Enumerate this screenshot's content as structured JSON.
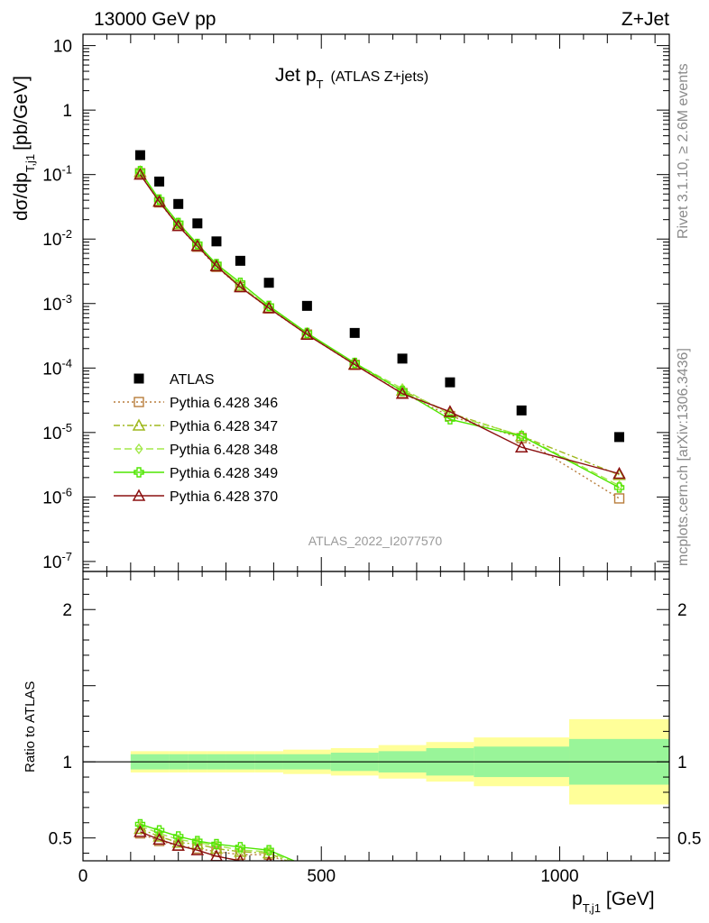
{
  "header": {
    "energy_label": "13000 GeV pp",
    "process_label": "Z+Jet"
  },
  "plot_title": {
    "main": "Jet p",
    "sub": "T",
    "note": "(ATLAS Z+jets)"
  },
  "analysis_id": "ATLAS_2022_I2077570",
  "side_texts": {
    "rivet": "Rivet 3.1.10, ≥ 2.6M events",
    "mcplots": "mcplots.cern.ch [arXiv:1306.3436]"
  },
  "ylabel": {
    "main": "dσ/dp",
    "sub": "T,j1",
    "unit": "[pb/GeV]"
  },
  "xlabel": {
    "main": "p",
    "sub": "T,j1",
    "unit": "[GeV]"
  },
  "ratio_ylabel": "Ratio to ATLAS",
  "main_ticks": [
    {
      "v": 10,
      "m": "10",
      "e": ""
    },
    {
      "v": 1,
      "m": "1",
      "e": ""
    },
    {
      "v": 0.1,
      "m": "10",
      "e": "-1"
    },
    {
      "v": 0.01,
      "m": "10",
      "e": "-2"
    },
    {
      "v": 0.001,
      "m": "10",
      "e": "-3"
    },
    {
      "v": 0.0001,
      "m": "10",
      "e": "-4"
    },
    {
      "v": 1e-05,
      "m": "10",
      "e": "-5"
    },
    {
      "v": 1e-06,
      "m": "10",
      "e": "-6"
    },
    {
      "v": 1e-07,
      "m": "10",
      "e": "-7"
    }
  ],
  "ratio_ticks": [
    {
      "v": 2,
      "label": "2"
    },
    {
      "v": 1,
      "label": "1"
    },
    {
      "v": 0.5,
      "label": "0.5"
    }
  ],
  "x_ticks": [
    {
      "v": 0,
      "label": "0"
    },
    {
      "v": 500,
      "label": "500"
    },
    {
      "v": 1000,
      "label": "1000"
    }
  ],
  "colors": {
    "data": "#000000",
    "band_inner": "#99f599",
    "band_outer": "#ffff99",
    "p346": "#b87d3b",
    "p347": "#9fb81e",
    "p348": "#a3e84a",
    "p349": "#4fe600",
    "p370": "#8b1010"
  },
  "chart_data": {
    "type": "scatter",
    "xlim": [
      0,
      1230
    ],
    "ylim": [
      7e-08,
      15
    ],
    "ylog": true,
    "ratio_ylim": [
      0.35,
      2.25
    ],
    "bins": [
      [
        100,
        140
      ],
      [
        140,
        180
      ],
      [
        180,
        220
      ],
      [
        220,
        260
      ],
      [
        260,
        300
      ],
      [
        300,
        360
      ],
      [
        360,
        420
      ],
      [
        420,
        520
      ],
      [
        520,
        620
      ],
      [
        620,
        720
      ],
      [
        720,
        820
      ],
      [
        820,
        1020
      ],
      [
        1020,
        1230
      ]
    ],
    "x": [
      120,
      160,
      200,
      240,
      280,
      330,
      390,
      470,
      570,
      670,
      770,
      920,
      1125
    ],
    "data": {
      "name": "ATLAS",
      "values": [
        0.2,
        0.078,
        0.035,
        0.0175,
        0.0092,
        0.0046,
        0.0021,
        0.00092,
        0.00035,
        0.00014,
        6e-05,
        2.2e-05,
        8.5e-06
      ],
      "band_inner": [
        0.05,
        0.05,
        0.05,
        0.05,
        0.05,
        0.05,
        0.05,
        0.05,
        0.06,
        0.07,
        0.09,
        0.1,
        0.15
      ],
      "band_outer": [
        0.07,
        0.07,
        0.07,
        0.07,
        0.07,
        0.07,
        0.07,
        0.08,
        0.09,
        0.11,
        0.13,
        0.16,
        0.28
      ]
    },
    "series": [
      {
        "key": "p346",
        "name": "Pythia 6.428 346",
        "marker": "square",
        "dash": "2,3",
        "values": [
          0.105,
          0.037,
          0.016,
          0.0076,
          0.0037,
          0.0018,
          0.00084,
          0.00033,
          0.000112,
          4.1e-05,
          1.8e-05,
          8.2e-06,
          9.5e-07
        ],
        "ratio": [
          0.53,
          0.48,
          0.45,
          0.43,
          0.41,
          0.39,
          0.39
        ]
      },
      {
        "key": "p347",
        "name": "Pythia 6.428 347",
        "marker": "triangle",
        "dash": "7,3,2,3",
        "values": [
          0.11,
          0.039,
          0.017,
          0.008,
          0.0039,
          0.0019,
          0.00087,
          0.00034,
          0.000115,
          4.5e-05,
          2e-05,
          8.8e-06,
          2.2e-06
        ],
        "ratio": [
          0.56,
          0.51,
          0.47,
          0.46,
          0.43,
          0.41,
          0.4
        ]
      },
      {
        "key": "p348",
        "name": "Pythia 6.428 348",
        "marker": "diamond",
        "dash": "8,4",
        "values": [
          0.112,
          0.04,
          0.0175,
          0.0082,
          0.004,
          0.0019,
          0.00088,
          0.00034,
          0.000118,
          4.8e-05,
          1.9e-05,
          9e-06,
          1.5e-06
        ],
        "ratio": [
          0.58,
          0.53,
          0.49,
          0.47,
          0.45,
          0.42,
          0.41
        ]
      },
      {
        "key": "p349",
        "name": "Pythia 6.428 349",
        "marker": "cross",
        "dash": "",
        "values": [
          0.113,
          0.041,
          0.0178,
          0.0084,
          0.0041,
          0.0021,
          0.00092,
          0.00035,
          0.00012,
          4.4e-05,
          1.6e-05,
          8.8e-06,
          1.4e-06
        ],
        "ratio": [
          0.59,
          0.55,
          0.51,
          0.48,
          0.46,
          0.44,
          0.42
        ]
      },
      {
        "key": "p370",
        "name": "Pythia 6.428 370",
        "marker": "triangle",
        "dash": "",
        "values": [
          0.1,
          0.038,
          0.016,
          0.0078,
          0.0038,
          0.0018,
          0.00085,
          0.00033,
          0.000113,
          4e-05,
          2.1e-05,
          5.9e-06,
          2.3e-06
        ],
        "ratio": [
          0.54,
          0.49,
          0.45,
          0.42,
          0.38,
          0.35,
          0.34
        ]
      }
    ]
  }
}
